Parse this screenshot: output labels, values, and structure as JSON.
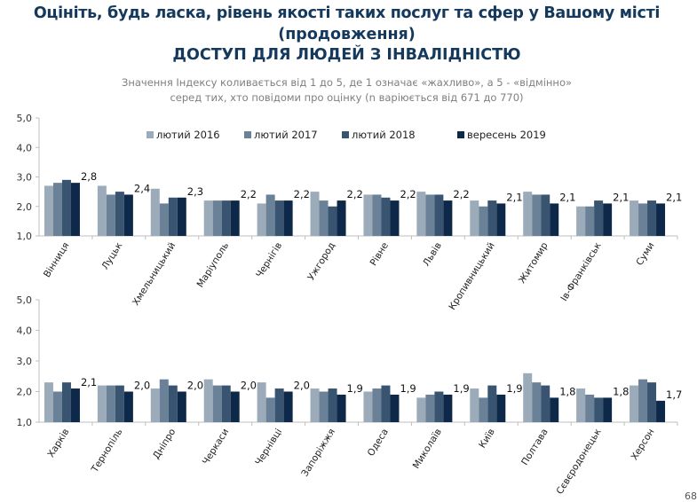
{
  "header": {
    "title_line1": "Оцініть, будь ласка, рівень якості таких послуг та сфер у Вашому місті",
    "title_line2": "(продовження)",
    "title_line3": "ДОСТУП ДЛЯ ЛЮДЕЙ З ІНВАЛІДНІСТЮ",
    "subtitle_line1": "Значення Індексу коливається від 1 до 5, де 1 означає «жахливо», а 5 - «відмінно»",
    "subtitle_line2": "серед тих, хто повідоми про оцінку (n варіюється від 671 до 770)"
  },
  "page_number": "68",
  "colors": [
    "#9babb9",
    "#6a8197",
    "#395470",
    "#0d2849"
  ],
  "chart_data": [
    {
      "type": "bar",
      "title": "",
      "ylim": [
        1,
        5
      ],
      "yticks": [
        "1,0",
        "2,0",
        "3,0",
        "4,0",
        "5,0"
      ],
      "legend": {
        "placement": "top-center",
        "entries": [
          "лютий 2016",
          "лютий 2017",
          "лютий 2018",
          "вересень 2019"
        ]
      },
      "categories": [
        "Вінниця",
        "Луцьк",
        "Хмельницький",
        "Маріуполь",
        "Чернігів",
        "Ужгород",
        "Рівне",
        "Львів",
        "Кропивницький",
        "Житомир",
        "Ів-Франківськ",
        "Суми"
      ],
      "series": [
        {
          "name": "лютий 2016",
          "values": [
            2.7,
            2.7,
            2.6,
            2.2,
            2.1,
            2.5,
            2.4,
            2.5,
            2.2,
            2.5,
            2.0,
            2.2
          ]
        },
        {
          "name": "лютий 2017",
          "values": [
            2.8,
            2.4,
            2.1,
            2.2,
            2.4,
            2.2,
            2.4,
            2.4,
            2.0,
            2.4,
            2.0,
            2.1
          ]
        },
        {
          "name": "лютий 2018",
          "values": [
            2.9,
            2.5,
            2.3,
            2.2,
            2.2,
            2.0,
            2.3,
            2.4,
            2.2,
            2.4,
            2.2,
            2.2
          ]
        },
        {
          "name": "вересень 2019",
          "values": [
            2.8,
            2.4,
            2.3,
            2.2,
            2.2,
            2.2,
            2.2,
            2.2,
            2.1,
            2.1,
            2.1,
            2.1
          ]
        }
      ],
      "data_labels": [
        "2,8",
        "2,4",
        "2,3",
        "2,2",
        "2,2",
        "2,2",
        "2,2",
        "2,2",
        "2,1",
        "2,1",
        "2,1",
        "2,1"
      ]
    },
    {
      "type": "bar",
      "title": "",
      "ylim": [
        1,
        5
      ],
      "yticks": [
        "1,0",
        "2,0",
        "3,0",
        "4,0",
        "5,0"
      ],
      "categories": [
        "Харків",
        "Тернопіль",
        "Дніпро",
        "Черкаси",
        "Чернівці",
        "Запоріжжя",
        "Одеса",
        "Миколаїв",
        "Київ",
        "Полтава",
        "Сєвєродонецьк",
        "Херсон"
      ],
      "series": [
        {
          "name": "лютий 2016",
          "values": [
            2.3,
            2.2,
            2.1,
            2.4,
            2.3,
            2.1,
            2.0,
            1.8,
            2.1,
            2.6,
            2.1,
            2.2
          ]
        },
        {
          "name": "лютий 2017",
          "values": [
            2.0,
            2.2,
            2.4,
            2.2,
            1.8,
            2.0,
            2.1,
            1.9,
            1.8,
            2.3,
            1.9,
            2.4
          ]
        },
        {
          "name": "лютий 2018",
          "values": [
            2.3,
            2.2,
            2.2,
            2.2,
            2.1,
            2.1,
            2.2,
            2.0,
            2.2,
            2.2,
            1.8,
            2.3
          ]
        },
        {
          "name": "вересень 2019",
          "values": [
            2.1,
            2.0,
            2.0,
            2.0,
            2.0,
            1.9,
            1.9,
            1.9,
            1.9,
            1.8,
            1.8,
            1.7
          ]
        }
      ],
      "data_labels": [
        "2,1",
        "2,0",
        "2,0",
        "2,0",
        "2,0",
        "1,9",
        "1,9",
        "1,9",
        "1,9",
        "1,8",
        "1,8",
        "1,7"
      ]
    }
  ]
}
